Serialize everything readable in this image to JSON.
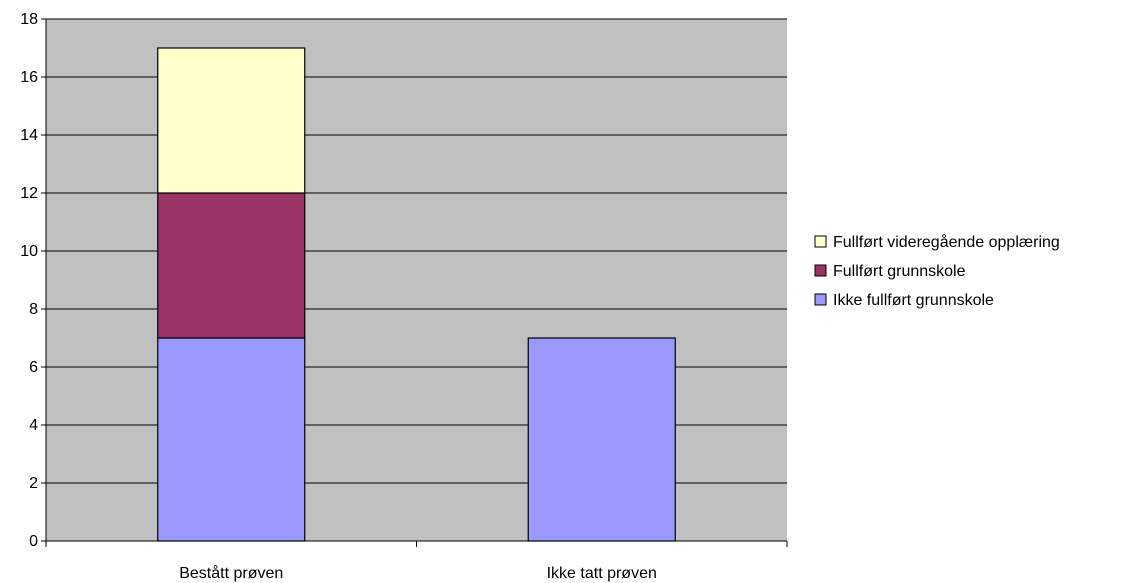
{
  "chart_data": {
    "type": "bar",
    "stacked": true,
    "categories": [
      "Bestått prøven",
      "Ikke tatt prøven"
    ],
    "series": [
      {
        "name": "Ikke fullført grunnskole",
        "values": [
          7,
          7
        ],
        "color": "#9999ff"
      },
      {
        "name": "Fullført grunnskole",
        "values": [
          5,
          0
        ],
        "color": "#993366"
      },
      {
        "name": "Fullført videregående opplæring",
        "values": [
          5,
          0
        ],
        "color": "#ffffcc"
      }
    ],
    "legend_order": [
      "Fullført videregående opplæring",
      "Fullført grunnskole",
      "Ikke fullført grunnskole"
    ],
    "ylim": [
      0,
      18
    ],
    "yticks": [
      "0",
      "2",
      "4",
      "6",
      "8",
      "10",
      "12",
      "14",
      "16",
      "18"
    ],
    "grid": true,
    "plot_background": "#c0c0c0",
    "legend_position": "right"
  }
}
